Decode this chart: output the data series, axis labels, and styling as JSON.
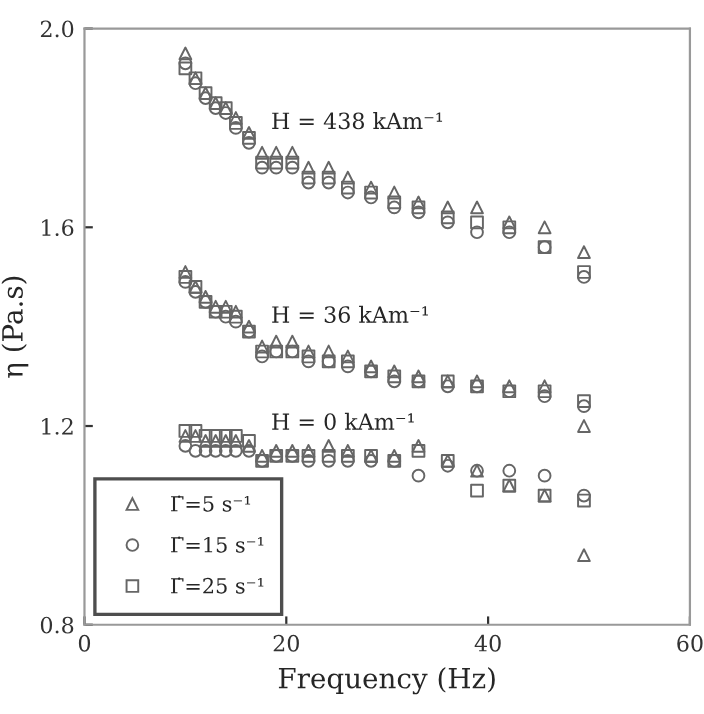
{
  "chart_data": {
    "type": "scatter",
    "xlabel": "Frequency (Hz)",
    "ylabel": "η (Pa.s)",
    "xlim": [
      0,
      60
    ],
    "xticks": [
      0,
      20,
      40,
      60
    ],
    "ylim": [
      0.8,
      2.0
    ],
    "yticks": [
      0.8,
      1.2,
      1.6,
      {
        "value": 2.0,
        "label": "2.0"
      }
    ],
    "grid": false,
    "legend": "bottom left",
    "annotations": [
      "H = 438 kAm⁻¹",
      "H = 36 kAm⁻¹",
      "H = 0 kAm⁻¹"
    ],
    "series": [
      {
        "name": "Γ̇=5 s⁻¹",
        "color": "#666666",
        "marker": "triangle",
        "x": [
          10,
          11,
          12,
          13,
          14,
          15,
          16.3,
          17.6,
          19,
          20.6,
          22.2,
          24.2,
          26.1,
          28.4,
          30.7,
          33.1,
          36,
          38.9,
          42.1,
          45.6,
          49.5,
          10,
          11,
          12,
          13,
          14,
          15,
          16.3,
          17.6,
          19,
          20.6,
          22.2,
          24.2,
          26.1,
          28.4,
          30.7,
          33.1,
          36,
          38.9,
          42.1,
          45.6,
          49.5,
          10,
          11,
          12,
          13,
          14,
          15,
          16.3,
          17.6,
          19,
          20.6,
          22.2,
          24.2,
          26.1,
          28.4,
          30.7,
          33.1,
          36,
          38.9,
          42.1,
          45.6,
          49.5
        ],
        "values": [
          1.95,
          1.9,
          1.87,
          1.85,
          1.84,
          1.82,
          1.79,
          1.75,
          1.75,
          1.75,
          1.72,
          1.72,
          1.7,
          1.68,
          1.67,
          1.65,
          1.64,
          1.64,
          1.61,
          1.6,
          1.55,
          1.51,
          1.48,
          1.46,
          1.44,
          1.44,
          1.43,
          1.4,
          1.36,
          1.37,
          1.37,
          1.35,
          1.35,
          1.34,
          1.32,
          1.31,
          1.3,
          1.29,
          1.29,
          1.28,
          1.28,
          1.2,
          1.18,
          1.18,
          1.17,
          1.17,
          1.17,
          1.17,
          1.16,
          1.14,
          1.15,
          1.15,
          1.15,
          1.16,
          1.15,
          1.14,
          1.14,
          1.16,
          1.13,
          1.11,
          1.08,
          1.06,
          0.94
        ]
      },
      {
        "name": "Γ̇=15 s⁻¹",
        "color": "#666666",
        "marker": "circle",
        "x": [
          10,
          11,
          12,
          13,
          14,
          15,
          16.3,
          17.6,
          19,
          20.6,
          22.2,
          24.2,
          26.1,
          28.4,
          30.7,
          33.1,
          36,
          38.9,
          42.1,
          45.6,
          49.5,
          10,
          11,
          12,
          13,
          14,
          15,
          16.3,
          17.6,
          19,
          20.6,
          22.2,
          24.2,
          26.1,
          28.4,
          30.7,
          33.1,
          36,
          38.9,
          42.1,
          45.6,
          49.5,
          10,
          11,
          12,
          13,
          14,
          15,
          16.3,
          17.6,
          19,
          20.6,
          22.2,
          24.2,
          26.1,
          28.4,
          30.7,
          33.1,
          36,
          38.9,
          42.1,
          45.6,
          49.5
        ],
        "values": [
          1.93,
          1.89,
          1.86,
          1.84,
          1.83,
          1.8,
          1.77,
          1.72,
          1.72,
          1.72,
          1.69,
          1.69,
          1.67,
          1.66,
          1.64,
          1.63,
          1.61,
          1.59,
          1.59,
          1.56,
          1.5,
          1.49,
          1.47,
          1.45,
          1.43,
          1.42,
          1.41,
          1.39,
          1.34,
          1.35,
          1.35,
          1.33,
          1.33,
          1.32,
          1.31,
          1.29,
          1.29,
          1.28,
          1.28,
          1.27,
          1.26,
          1.24,
          1.16,
          1.15,
          1.15,
          1.15,
          1.15,
          1.15,
          1.15,
          1.13,
          1.14,
          1.14,
          1.13,
          1.13,
          1.13,
          1.13,
          1.13,
          1.1,
          1.12,
          1.11,
          1.11,
          1.1,
          1.06
        ]
      },
      {
        "name": "Γ̇=25 s⁻¹",
        "color": "#666666",
        "marker": "square",
        "x": [
          10,
          11,
          12,
          13,
          14,
          15,
          16.3,
          17.6,
          19,
          20.6,
          22.2,
          24.2,
          26.1,
          28.4,
          30.7,
          33.1,
          36,
          38.9,
          42.1,
          45.6,
          49.5,
          10,
          11,
          12,
          13,
          14,
          15,
          16.3,
          17.6,
          19,
          20.6,
          22.2,
          24.2,
          26.1,
          28.4,
          30.7,
          33.1,
          36,
          38.9,
          42.1,
          45.6,
          49.5,
          10,
          11,
          12,
          13,
          14,
          15,
          16.3,
          17.6,
          19,
          20.6,
          22.2,
          24.2,
          26.1,
          28.4,
          30.7,
          33.1,
          36,
          38.9,
          42.1,
          45.6,
          49.5
        ],
        "values": [
          1.92,
          1.9,
          1.87,
          1.85,
          1.84,
          1.81,
          1.78,
          1.73,
          1.73,
          1.73,
          1.7,
          1.7,
          1.68,
          1.67,
          1.65,
          1.64,
          1.62,
          1.61,
          1.6,
          1.56,
          1.51,
          1.5,
          1.48,
          1.45,
          1.43,
          1.43,
          1.42,
          1.39,
          1.35,
          1.35,
          1.35,
          1.34,
          1.33,
          1.33,
          1.31,
          1.3,
          1.29,
          1.29,
          1.28,
          1.27,
          1.27,
          1.25,
          1.19,
          1.19,
          1.18,
          1.18,
          1.18,
          1.18,
          1.17,
          1.13,
          1.14,
          1.14,
          1.14,
          1.14,
          1.14,
          1.14,
          1.13,
          1.15,
          1.13,
          1.07,
          1.08,
          1.06,
          1.05
        ]
      }
    ]
  }
}
